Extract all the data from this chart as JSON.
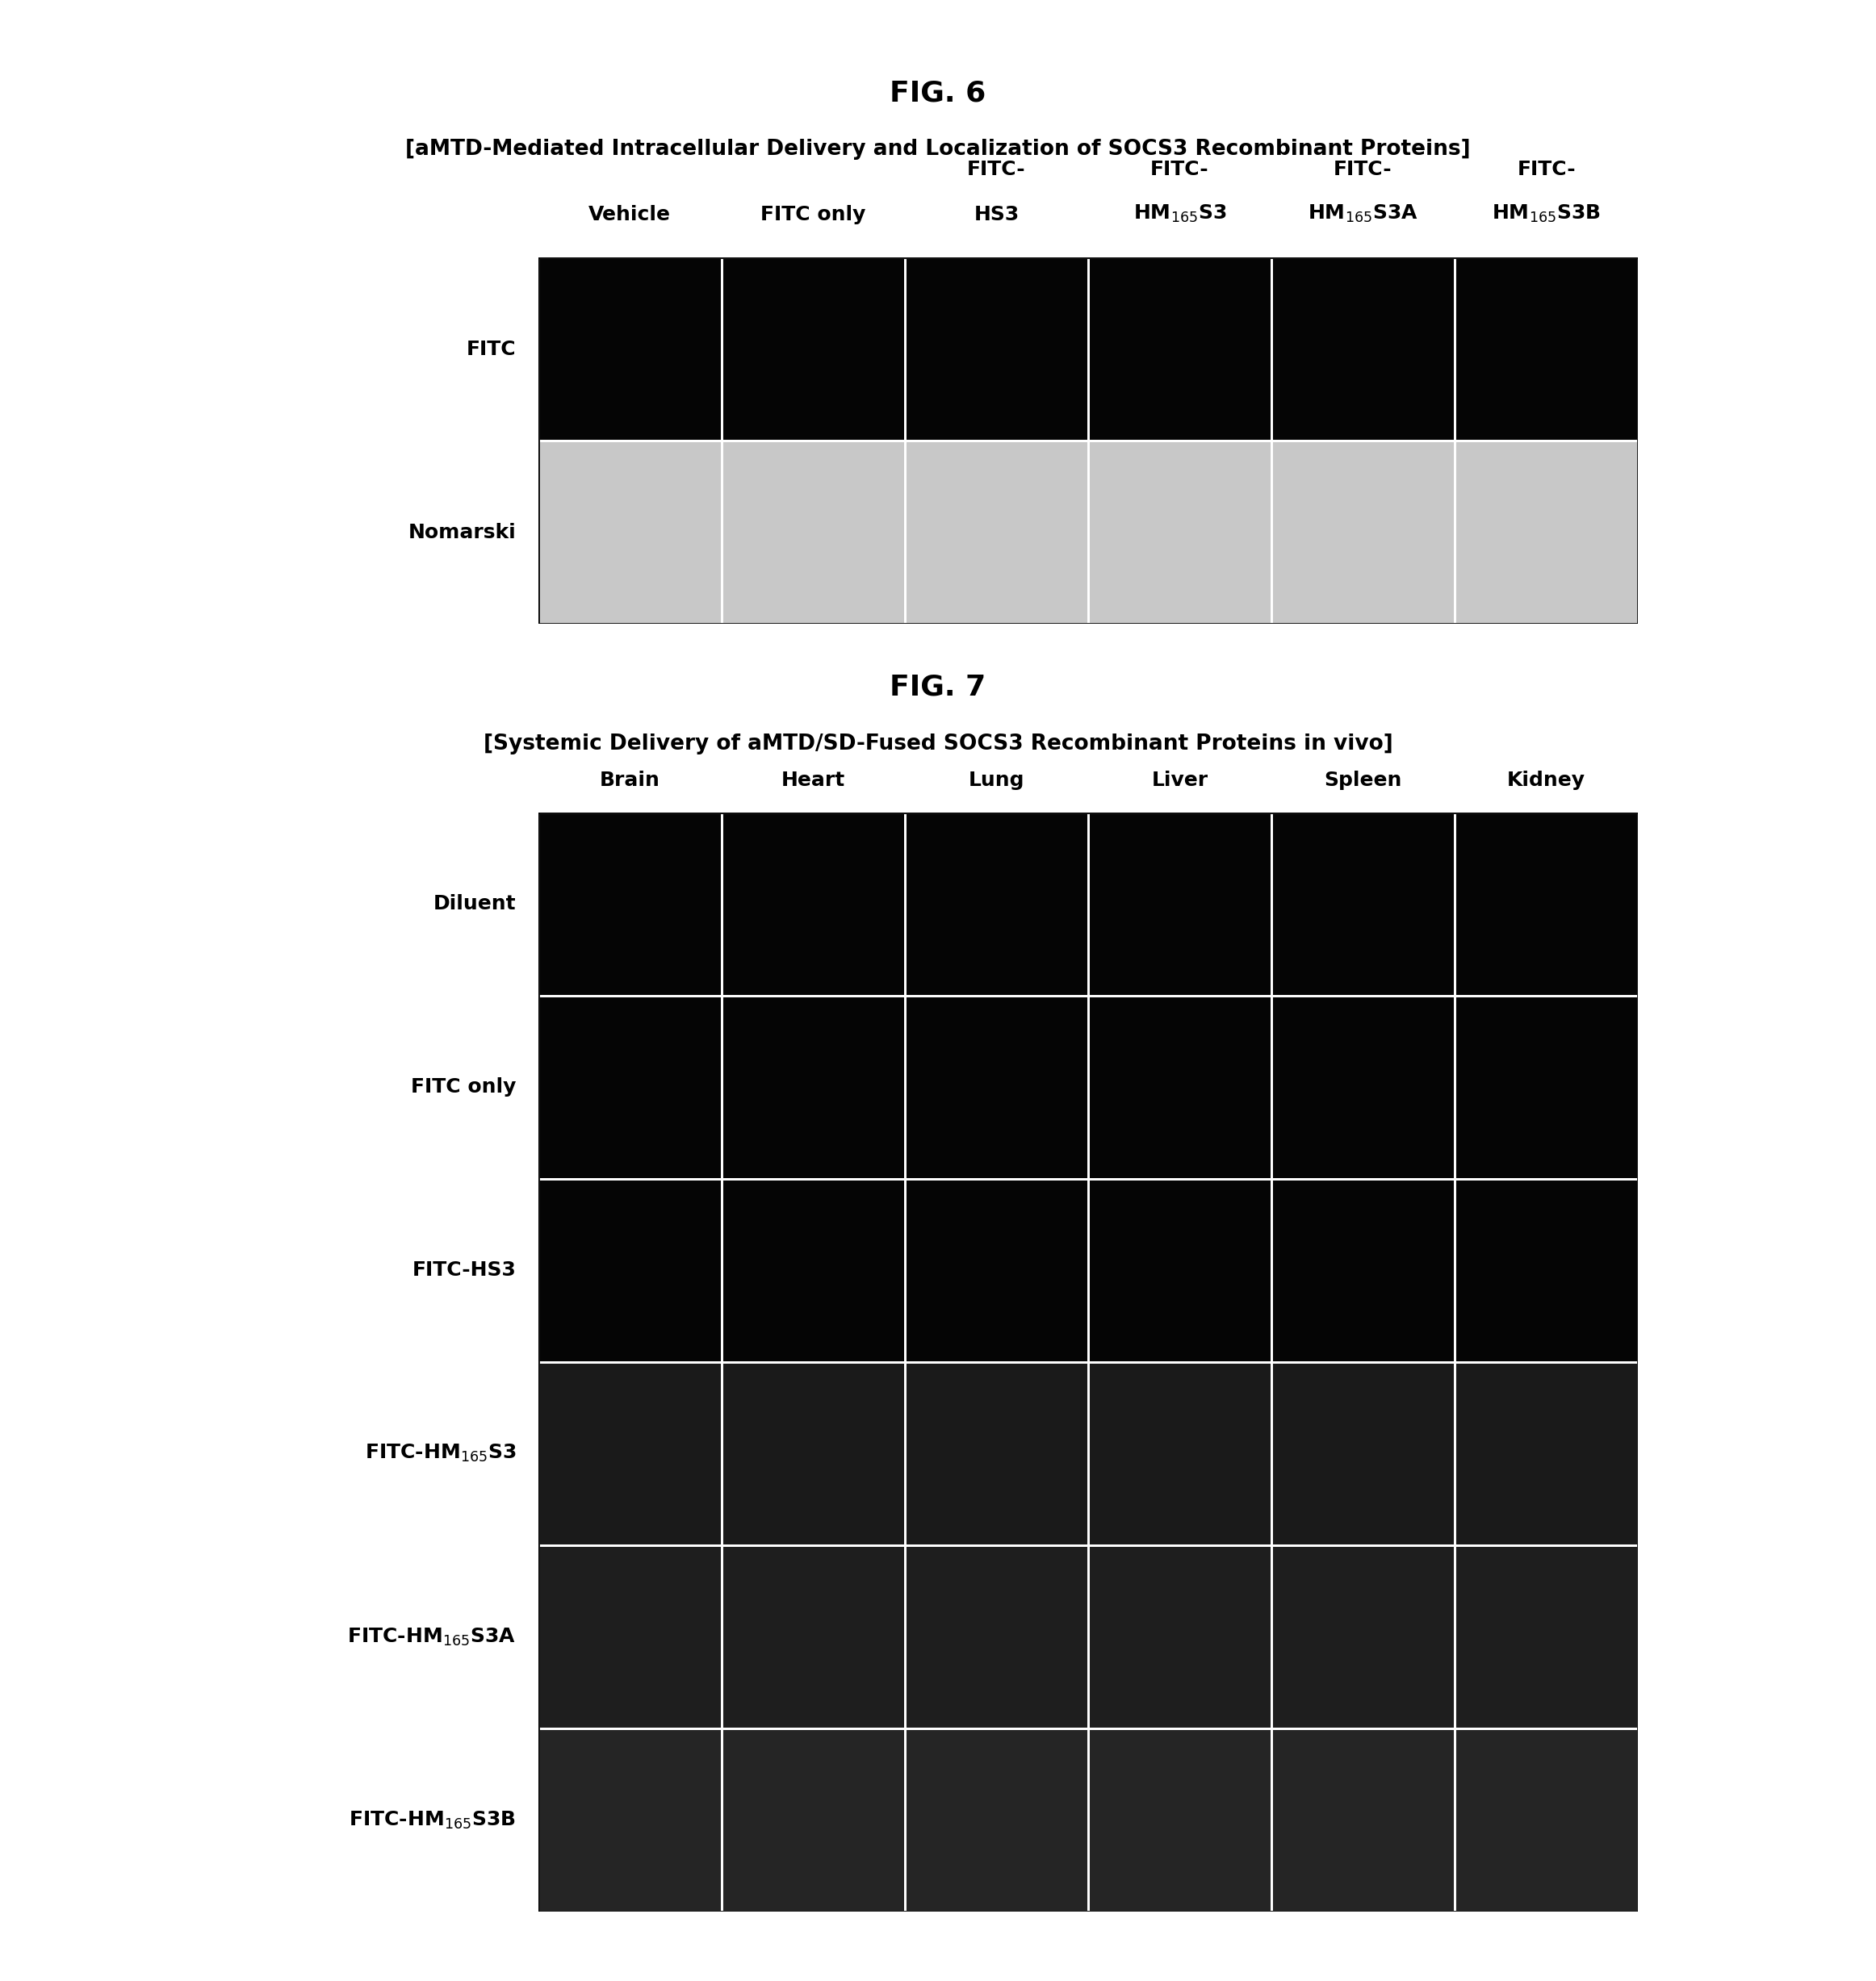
{
  "fig6_title": "FIG. 6",
  "fig6_subtitle": "[aMTD-Mediated Intracellular Delivery and Localization of SOCS3 Recombinant Proteins]",
  "fig6_col_labels_line1": [
    "Vehicle",
    "FITC only",
    "FITC-",
    "FITC-",
    "FITC-",
    "FITC-"
  ],
  "fig6_col_labels_line2": [
    "",
    "",
    "HS3",
    "HM$_{165}$S3",
    "HM$_{165}$S3A",
    "HM$_{165}$S3B"
  ],
  "fig6_row_labels": [
    "FITC",
    "Nomarski"
  ],
  "fig6_row_colors": [
    "#050505",
    "#c8c8c8"
  ],
  "fig7_title": "FIG. 7",
  "fig7_subtitle": "[Systemic Delivery of aMTD/SD-Fused SOCS3 Recombinant Proteins in vivo]",
  "fig7_col_labels": [
    "Brain",
    "Heart",
    "Lung",
    "Liver",
    "Spleen",
    "Kidney"
  ],
  "fig7_row_labels": [
    "Diluent",
    "FITC only",
    "FITC-HS3",
    "FITC-HM$_{165}$S3",
    "FITC-HM$_{165}$S3A",
    "FITC-HM$_{165}$S3B"
  ],
  "fig7_row_colors": [
    "#050505",
    "#050505",
    "#050505",
    "#1a1a1a",
    "#1e1e1e",
    "#252525"
  ],
  "background_color": "#ffffff",
  "grid_line_color": "#ffffff",
  "title_fontsize": 26,
  "subtitle_fontsize": 19,
  "col_label_fontsize": 18,
  "row_label_fontsize": 18
}
